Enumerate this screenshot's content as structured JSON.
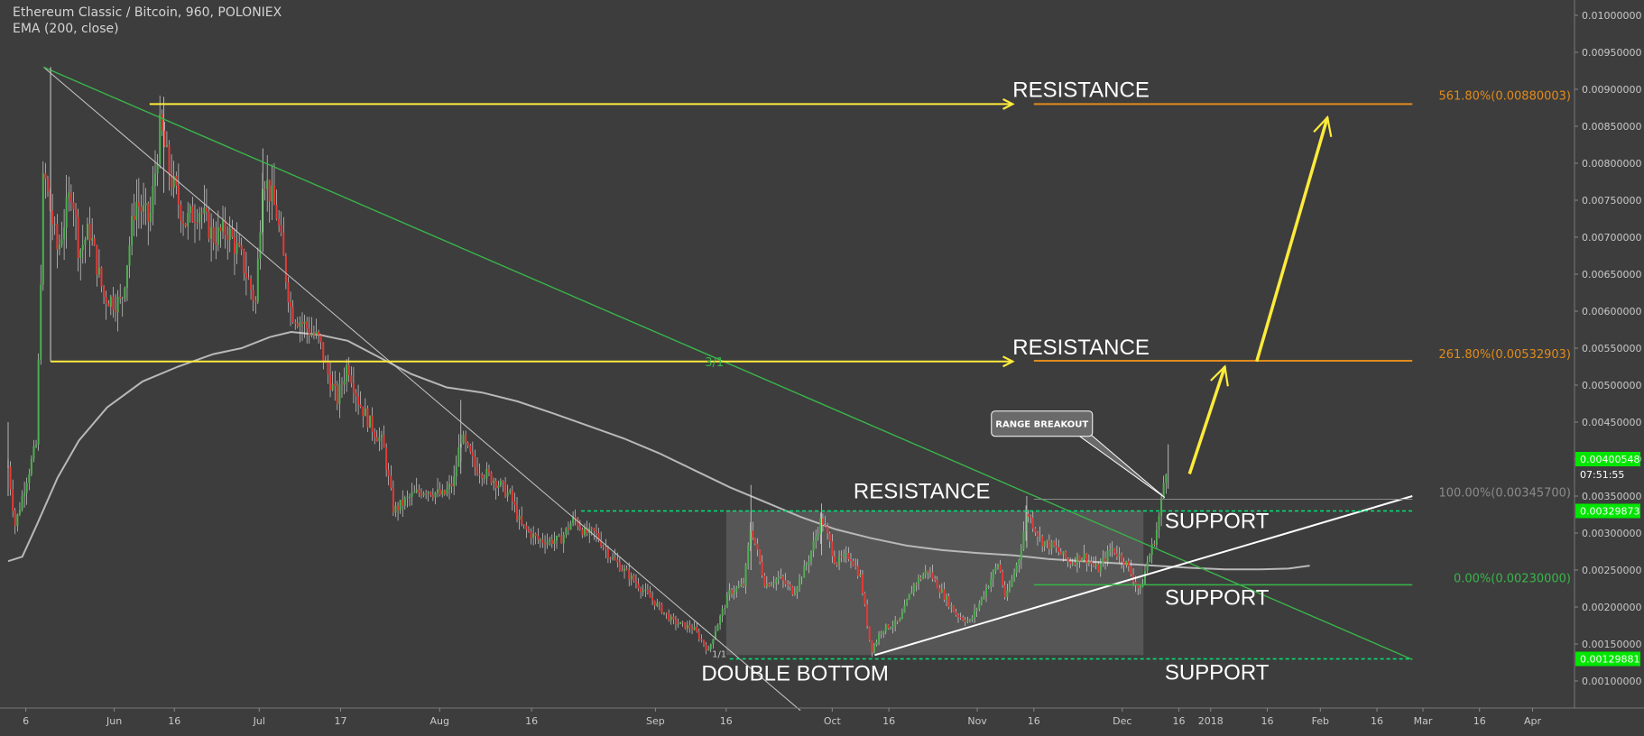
{
  "header": {
    "title": "Ethereum Classic / Bitcoin, 960, POLONIEX",
    "indicator": "EMA (200, close)"
  },
  "colors": {
    "background": "#3d3d3d",
    "bull": "#4caf50",
    "bear": "#e53935",
    "ema": "#b8b8b8",
    "trend_green": "#39b54a",
    "yellow": "#ffeb3b",
    "fib_orange": "#e08b1c",
    "green_dash": "#00e676",
    "price_tag_green": "#00e600",
    "range_box": "#5a5a5a"
  },
  "chart_data": {
    "type": "candlestick",
    "title": "Ethereum Classic / Bitcoin, 960, POLONIEX",
    "ylim": [
      0.00062,
      0.01012
    ],
    "y_ticks": [
      "0.01000000",
      "0.00950000",
      "0.00900000",
      "0.00850000",
      "0.00800000",
      "0.00750000",
      "0.00700000",
      "0.00650000",
      "0.00600000",
      "0.00550000",
      "0.00500000",
      "0.00450000",
      "0.00400000",
      "0.00350000",
      "0.00300000",
      "0.00250000",
      "0.00200000",
      "0.00150000",
      "0.00100000"
    ],
    "x_tick_labels": [
      "6",
      "Jun",
      "16",
      "Jul",
      "17",
      "Aug",
      "16",
      "Sep",
      "16",
      "Oct",
      "16",
      "Nov",
      "16",
      "Dec",
      "16",
      "2018",
      "16",
      "Feb",
      "16",
      "Mar",
      "16",
      "Apr"
    ],
    "x_tick_days": [
      5,
      30,
      47,
      71,
      94,
      122,
      148,
      183,
      203,
      233,
      249,
      274,
      290,
      315,
      331,
      340,
      356,
      371,
      387,
      400,
      416,
      431
    ],
    "ema_label": "EMA (200, close)",
    "ema": [
      [
        0,
        0.00262
      ],
      [
        4,
        0.00268
      ],
      [
        8,
        0.0031
      ],
      [
        14,
        0.00375
      ],
      [
        20,
        0.00425
      ],
      [
        28,
        0.0047
      ],
      [
        38,
        0.00505
      ],
      [
        48,
        0.00525
      ],
      [
        58,
        0.00542
      ],
      [
        66,
        0.0055
      ],
      [
        74,
        0.00565
      ],
      [
        80,
        0.00572
      ],
      [
        88,
        0.00568
      ],
      [
        96,
        0.0056
      ],
      [
        104,
        0.0054
      ],
      [
        114,
        0.00515
      ],
      [
        124,
        0.00497
      ],
      [
        134,
        0.0049
      ],
      [
        144,
        0.00478
      ],
      [
        154,
        0.00462
      ],
      [
        164,
        0.00445
      ],
      [
        174,
        0.00428
      ],
      [
        184,
        0.00408
      ],
      [
        194,
        0.00385
      ],
      [
        204,
        0.00362
      ],
      [
        214,
        0.00342
      ],
      [
        224,
        0.00322
      ],
      [
        234,
        0.00305
      ],
      [
        244,
        0.00293
      ],
      [
        254,
        0.00283
      ],
      [
        264,
        0.00277
      ],
      [
        274,
        0.00273
      ],
      [
        284,
        0.0027
      ],
      [
        294,
        0.00265
      ],
      [
        304,
        0.00262
      ],
      [
        314,
        0.00259
      ],
      [
        324,
        0.00256
      ],
      [
        334,
        0.00253
      ],
      [
        344,
        0.00251
      ],
      [
        354,
        0.00251
      ],
      [
        362,
        0.00252
      ],
      [
        368,
        0.00256
      ]
    ],
    "price_path": [
      [
        0,
        0.0039
      ],
      [
        2,
        0.0031
      ],
      [
        5,
        0.0037
      ],
      [
        8,
        0.0042
      ],
      [
        10,
        0.0079
      ],
      [
        14,
        0.0068
      ],
      [
        18,
        0.0077
      ],
      [
        20,
        0.0068
      ],
      [
        23,
        0.0071
      ],
      [
        27,
        0.0062
      ],
      [
        32,
        0.0061
      ],
      [
        36,
        0.0075
      ],
      [
        40,
        0.0072
      ],
      [
        43,
        0.0085
      ],
      [
        46,
        0.0078
      ],
      [
        50,
        0.0072
      ],
      [
        54,
        0.0074
      ],
      [
        58,
        0.007
      ],
      [
        62,
        0.0071
      ],
      [
        66,
        0.0067
      ],
      [
        70,
        0.0061
      ],
      [
        72,
        0.0079
      ],
      [
        76,
        0.0073
      ],
      [
        80,
        0.006
      ],
      [
        84,
        0.0058
      ],
      [
        88,
        0.0056
      ],
      [
        90,
        0.0052
      ],
      [
        93,
        0.0048
      ],
      [
        96,
        0.0053
      ],
      [
        99,
        0.0048
      ],
      [
        102,
        0.0045
      ],
      [
        106,
        0.0042
      ],
      [
        109,
        0.0033
      ],
      [
        114,
        0.0035
      ],
      [
        118,
        0.0036
      ],
      [
        123,
        0.0035
      ],
      [
        126,
        0.0037
      ],
      [
        128,
        0.0043
      ],
      [
        132,
        0.0039
      ],
      [
        138,
        0.0037
      ],
      [
        142,
        0.0035
      ],
      [
        145,
        0.0031
      ],
      [
        150,
        0.0029
      ],
      [
        156,
        0.0029
      ],
      [
        160,
        0.0032
      ],
      [
        163,
        0.003
      ],
      [
        166,
        0.003
      ],
      [
        170,
        0.0027
      ],
      [
        176,
        0.0024
      ],
      [
        182,
        0.0021
      ],
      [
        188,
        0.0018
      ],
      [
        194,
        0.0017
      ],
      [
        198,
        0.0014
      ],
      [
        200,
        0.0017
      ],
      [
        204,
        0.0022
      ],
      [
        208,
        0.0023
      ],
      [
        210,
        0.0031
      ],
      [
        214,
        0.0023
      ],
      [
        218,
        0.0024
      ],
      [
        222,
        0.0022
      ],
      [
        226,
        0.0026
      ],
      [
        230,
        0.0032
      ],
      [
        234,
        0.0026
      ],
      [
        238,
        0.0027
      ],
      [
        241,
        0.0024
      ],
      [
        244,
        0.0014
      ],
      [
        247,
        0.0017
      ],
      [
        252,
        0.0018
      ],
      [
        256,
        0.0023
      ],
      [
        260,
        0.0025
      ],
      [
        264,
        0.0022
      ],
      [
        268,
        0.0019
      ],
      [
        272,
        0.0018
      ],
      [
        276,
        0.0022
      ],
      [
        280,
        0.0026
      ],
      [
        282,
        0.0021
      ],
      [
        286,
        0.0027
      ],
      [
        288,
        0.0033
      ],
      [
        292,
        0.0029
      ],
      [
        296,
        0.0028
      ],
      [
        300,
        0.0026
      ],
      [
        304,
        0.0027
      ],
      [
        308,
        0.0025
      ],
      [
        312,
        0.0028
      ],
      [
        316,
        0.0026
      ],
      [
        318,
        0.0024
      ],
      [
        320,
        0.0022
      ],
      [
        322,
        0.0026
      ],
      [
        324,
        0.0029
      ],
      [
        325,
        0.0031
      ],
      [
        326,
        0.0034
      ],
      [
        327,
        0.0038
      ],
      [
        328,
        0.004
      ]
    ],
    "spikes": [
      [
        0,
        0.0039,
        0.0045,
        0.0035
      ],
      [
        44,
        0.0084,
        0.0089,
        0.0076
      ],
      [
        72,
        0.0078,
        0.0082,
        0.0068
      ],
      [
        128,
        0.0042,
        0.0048,
        0.0038
      ],
      [
        210,
        0.0031,
        0.00365,
        0.0025
      ],
      [
        230,
        0.0032,
        0.0034,
        0.0027
      ],
      [
        288,
        0.0033,
        0.0035,
        0.0028
      ],
      [
        328,
        0.004,
        0.0042,
        0.0036
      ]
    ],
    "ranges": [
      [
        0,
        0
      ],
      [
        0,
        0
      ]
    ],
    "lines": {
      "gray_diagonal": [
        [
          10,
          0.0093
        ],
        [
          224,
          0.0006
        ]
      ],
      "green_trend": [
        [
          10,
          0.0093
        ],
        [
          397,
          0.00129
        ]
      ],
      "white_support": [
        [
          245,
          0.00135
        ],
        [
          397,
          0.0035
        ]
      ]
    },
    "horizontal_levels": {
      "yellow_top": {
        "from": 40,
        "to": 284,
        "price": 0.0088
      },
      "yellow_mid": {
        "from": 12,
        "to": 284,
        "price": 0.00532
      },
      "orange_top": {
        "from": 290,
        "to": 397,
        "price": 0.0088
      },
      "orange_mid": {
        "from": 290,
        "to": 397,
        "price": 0.00532903
      },
      "green_dash_top": {
        "from": 162,
        "to": 397,
        "price": 0.00329873
      },
      "green_dash_bottom": {
        "from": 204,
        "to": 397,
        "price": 0.00129881
      },
      "gray_100": {
        "from": 290,
        "to": 397,
        "price": 0.003457
      },
      "green_0": {
        "from": 290,
        "to": 397,
        "price": 0.0023
      }
    },
    "range_box": {
      "from_day": 203,
      "to_day": 321,
      "high": 0.0033,
      "low": 0.00135
    },
    "arrows": [
      {
        "from": [
          334,
          0.0038
        ],
        "to": [
          344,
          0.00525
        ]
      },
      {
        "from": [
          353,
          0.00532
        ],
        "to": [
          373,
          0.00862
        ]
      }
    ],
    "annotations": {
      "resistance_top": "RESISTANCE",
      "resistance_mid": "RESISTANCE",
      "resistance_box": "RESISTANCE",
      "support_1": "SUPPORT",
      "support_2": "SUPPORT",
      "support_3": "SUPPORT",
      "double_bottom": "DOUBLE BOTTOM",
      "range_breakout": "RANGE BREAKOUT",
      "ratio_label": "3/1",
      "small_label": "1/1"
    },
    "fib_labels": {
      "f561": "561.80%(0.00880003)",
      "f261": "261.80%(0.00532903)",
      "f100": "100.00%(0.00345700)",
      "f0": "0.00%(0.00230000)"
    },
    "price_tags": {
      "current": "0.00400548",
      "countdown": "07:51:55",
      "top_line": "0.00329873",
      "bottom_line": "0.00129881"
    }
  }
}
